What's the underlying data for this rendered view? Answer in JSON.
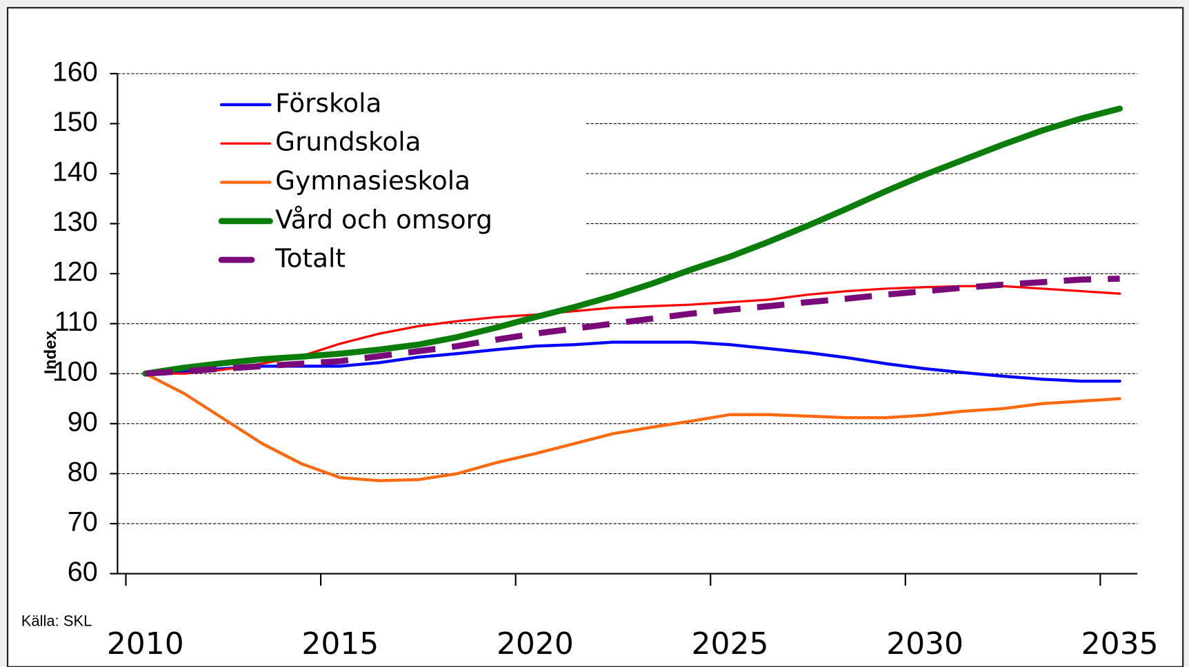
{
  "chart_data": {
    "type": "line",
    "y_label": "Index",
    "source": "Källa: SKL",
    "categories": [
      "2010",
      null,
      null,
      null,
      null,
      "2015",
      null,
      null,
      null,
      null,
      "2020",
      null,
      null,
      null,
      null,
      "2025",
      null,
      null,
      null,
      null,
      "2030",
      null,
      null,
      null,
      null,
      "2035"
    ],
    "series": [
      {
        "name": "Förskola",
        "color": "#0000ff",
        "values": [
          100,
          100.5,
          101,
          101.5,
          101.5,
          101.5,
          102.2,
          103.3,
          104,
          104.8,
          105.5,
          105.8,
          106.3,
          106.3,
          106.3,
          105.8,
          105,
          104.2,
          103.2,
          102,
          101,
          100.2,
          99.5,
          98.9,
          98.5,
          98.5
        ]
      },
      {
        "name": "Grundskola",
        "color": "#ff0000",
        "values": [
          100,
          100,
          100.8,
          102,
          103.5,
          106,
          108,
          109.5,
          110.5,
          111.3,
          111.8,
          112.5,
          113.2,
          113.5,
          113.8,
          114.3,
          114.8,
          115.8,
          116.5,
          117,
          117.3,
          117.5,
          117.5,
          117,
          116.5,
          116
        ]
      },
      {
        "name": "Gymnasieskola",
        "color": "#ff6a10",
        "values": [
          100,
          96,
          91,
          86,
          82,
          79.2,
          78.6,
          78.8,
          80,
          82.2,
          84,
          86,
          88,
          89.3,
          90.5,
          91.8,
          91.8,
          91.5,
          91.2,
          91.2,
          91.7,
          92.5,
          93,
          94,
          94.5,
          95
        ]
      },
      {
        "name": "Vård och omsorg",
        "color": "#0a7d0a",
        "values": [
          100,
          101.2,
          102.1,
          102.9,
          103.4,
          104,
          104.8,
          105.8,
          107.3,
          109.2,
          111.3,
          113.3,
          115.5,
          118,
          120.8,
          123.4,
          126.4,
          129.6,
          133,
          136.5,
          139.8,
          142.8,
          145.8,
          148.6,
          151,
          153
        ]
      },
      {
        "name": "Totalt",
        "color": "#7a0a7a",
        "dashed": true,
        "values": [
          100,
          100.5,
          101,
          101.5,
          102,
          102.5,
          103.5,
          104.5,
          105.5,
          106.8,
          108,
          109,
          110,
          111,
          112,
          112.8,
          113.5,
          114.3,
          115,
          115.8,
          116.5,
          117.2,
          117.8,
          118.3,
          118.8,
          119
        ]
      }
    ],
    "ylim": [
      60,
      160
    ],
    "yticks": [
      60,
      70,
      80,
      90,
      100,
      110,
      120,
      130,
      140,
      150,
      160
    ],
    "grid": true,
    "legend": "top-left"
  }
}
